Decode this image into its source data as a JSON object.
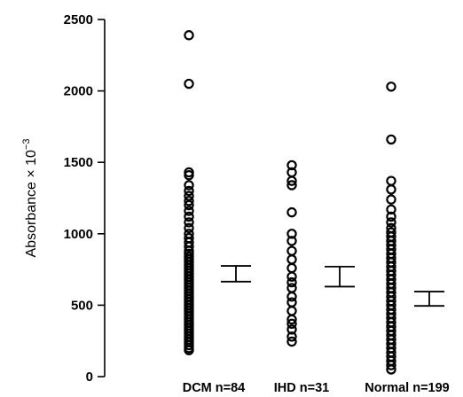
{
  "chart_data": {
    "type": "scatter",
    "title": "",
    "ylabel": "Absorbance × 10",
    "ylabel_exponent": "−3",
    "ylim": [
      0,
      2500
    ],
    "yticks": [
      "0",
      "500",
      "1000",
      "1500",
      "2000",
      "2500"
    ],
    "grid": false,
    "categories": [
      "DCM n=84",
      "IHD n=31",
      "Normal n=199"
    ],
    "series": [
      {
        "category": "DCM n=84",
        "values": [
          2390,
          2050,
          1430,
          1410,
          1340,
          1300,
          1265,
          1230,
          1200,
          1160,
          1120,
          1080,
          1040,
          1000,
          970,
          940,
          910,
          880,
          860,
          840,
          820,
          800,
          780,
          760,
          740,
          720,
          700,
          680,
          660,
          640,
          620,
          600,
          580,
          560,
          540,
          520,
          500,
          480,
          460,
          440,
          420,
          400,
          380,
          360,
          340,
          320,
          300,
          280,
          260,
          240,
          220,
          200,
          185
        ],
        "error_bar": [
          665,
          775
        ]
      },
      {
        "category": "IHD n=31",
        "values": [
          1480,
          1430,
          1370,
          1340,
          1150,
          1000,
          950,
          880,
          820,
          760,
          700,
          660,
          620,
          560,
          520,
          460,
          400,
          370,
          330,
          280,
          245
        ],
        "error_bar": [
          630,
          770
        ]
      },
      {
        "category": "Normal n=199",
        "values": [
          2030,
          1660,
          1370,
          1310,
          1240,
          1170,
          1120,
          1080,
          1040,
          1010,
          980,
          950,
          920,
          890,
          860,
          830,
          800,
          770,
          740,
          710,
          680,
          650,
          620,
          590,
          560,
          530,
          500,
          470,
          440,
          410,
          380,
          350,
          320,
          290,
          260,
          230,
          200,
          170,
          140,
          110,
          80,
          50
        ],
        "error_bar": [
          495,
          595
        ]
      }
    ]
  }
}
